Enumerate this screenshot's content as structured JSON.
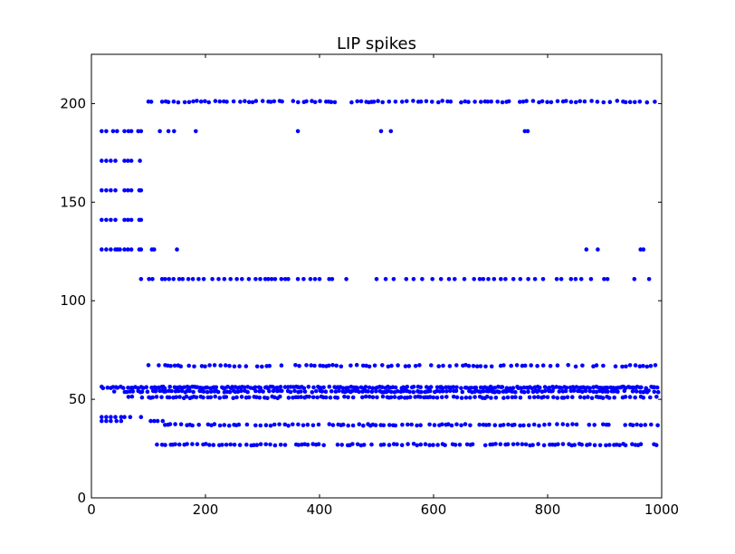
{
  "chart_data": {
    "type": "scatter",
    "title": "LIP spikes",
    "xlabel": "",
    "ylabel": "",
    "xlim": [
      0,
      1000
    ],
    "ylim": [
      0,
      225
    ],
    "xticks": [
      0,
      200,
      400,
      600,
      800,
      1000
    ],
    "yticks": [
      0,
      50,
      100,
      150,
      200
    ],
    "xtick_labels": [
      "0",
      "200",
      "400",
      "600",
      "800",
      "1000"
    ],
    "ytick_labels": [
      "0",
      "50",
      "100",
      "150",
      "200"
    ],
    "grid": false,
    "marker_color": "#0000ff",
    "rows": [
      {
        "y": 201,
        "ranges": [
          [
            100,
            995
          ]
        ],
        "spacing": 8
      },
      {
        "y": 186,
        "points": [
          18,
          26,
          38,
          45,
          58,
          65,
          70,
          82,
          87,
          120,
          135,
          145,
          183,
          362,
          508,
          525,
          760,
          765
        ]
      },
      {
        "y": 171,
        "points": [
          18,
          26,
          34,
          42,
          58,
          64,
          70,
          85
        ]
      },
      {
        "y": 156,
        "points": [
          18,
          26,
          34,
          42,
          58,
          64,
          70,
          84,
          87
        ]
      },
      {
        "y": 141,
        "points": [
          18,
          26,
          34,
          42,
          58,
          64,
          70,
          84,
          87
        ]
      },
      {
        "y": 126,
        "points": [
          18,
          26,
          34,
          42,
          46,
          50,
          58,
          64,
          70,
          84,
          87,
          106,
          110,
          150,
          868,
          888,
          963,
          968
        ]
      },
      {
        "y": 111,
        "points": [
          87,
          101,
          107,
          124,
          129,
          136,
          144,
          154,
          160,
          170,
          178,
          188,
          197,
          212,
          223,
          233,
          244,
          255,
          264,
          276,
          288,
          296,
          305,
          310,
          316,
          322,
          333,
          340,
          345,
          362,
          372,
          384,
          392,
          400,
          417,
          422,
          447,
          500,
          516,
          530,
          552,
          565,
          580,
          598,
          613,
          627,
          637,
          654,
          671,
          681,
          687,
          696,
          706,
          718,
          726,
          740,
          752,
          766,
          778,
          792,
          816,
          824,
          841,
          849,
          859,
          876,
          899,
          905,
          952,
          978
        ]
      },
      {
        "y": 67,
        "ranges": [
          [
            100,
            995
          ]
        ],
        "spacing": 9
      },
      {
        "y": 56,
        "ranges": [
          [
            18,
            995
          ]
        ],
        "spacing": 4
      },
      {
        "y": 54,
        "ranges": [
          [
            40,
            995
          ]
        ],
        "spacing": 5
      },
      {
        "y": 51,
        "ranges": [
          [
            65,
            995
          ]
        ],
        "spacing": 6
      },
      {
        "y": 41,
        "points": [
          18,
          26,
          34,
          42,
          52,
          58,
          68,
          87
        ]
      },
      {
        "y": 39,
        "points": [
          18,
          26,
          34,
          44,
          52,
          104,
          110,
          116,
          125
        ]
      },
      {
        "y": 37,
        "ranges": [
          [
            125,
            995
          ]
        ],
        "spacing": 7
      },
      {
        "y": 27,
        "ranges": [
          [
            115,
            995
          ]
        ],
        "spacing": 7
      }
    ]
  }
}
